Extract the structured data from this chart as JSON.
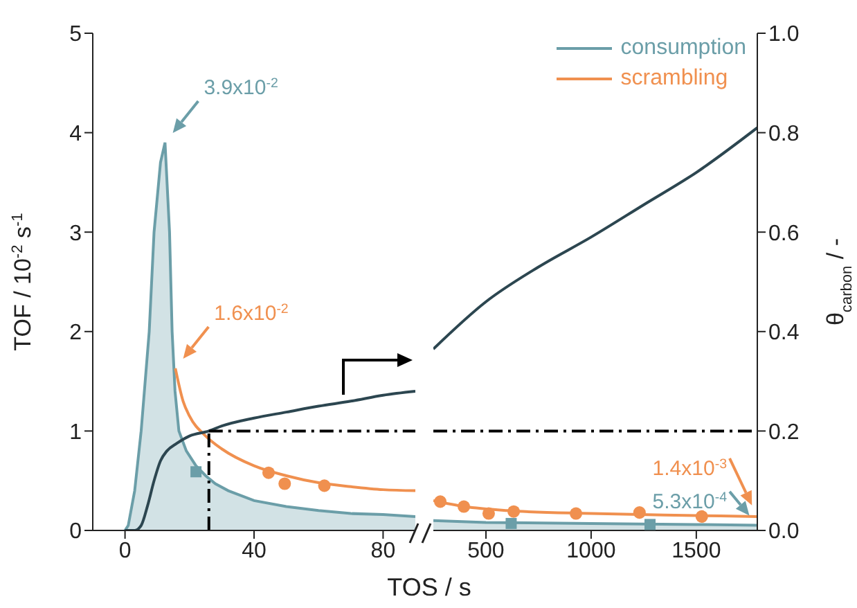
{
  "chart_data": [
    {
      "type": "line",
      "xlabel": "TOS / s",
      "ylabel": "TOF / 10$^{-2}$ s$^{-1}$",
      "xlim": [
        -10,
        90
      ],
      "xticks": [
        0,
        40,
        80
      ],
      "ylim": [
        0,
        5
      ],
      "yticks": [
        0,
        1,
        2,
        3,
        4,
        5
      ],
      "y2lim": [
        0,
        1
      ],
      "series": [
        {
          "type": "area",
          "color": "#6b9ea8",
          "x": [
            0,
            1,
            3,
            5,
            7.5,
            9,
            11,
            12.4,
            13.8,
            14.6,
            15.5,
            16.7,
            19,
            22,
            25,
            28,
            32,
            40,
            50,
            60,
            70,
            80,
            90
          ],
          "values": [
            0,
            0.05,
            0.4,
            1.0,
            2,
            3,
            3.7,
            3.9,
            3,
            2,
            1.4,
            1,
            0.8,
            0.65,
            0.55,
            0.47,
            0.4,
            0.3,
            0.24,
            0.2,
            0.17,
            0.16,
            0.14
          ]
        },
        {
          "type": "scatter",
          "marker": "square",
          "color": "#6b9ea8",
          "x": [
            22
          ],
          "values": [
            0.59
          ]
        },
        {
          "color": "#f0904f",
          "x": [
            15.6,
            18,
            20,
            25,
            30,
            40,
            50,
            60,
            70,
            80,
            90
          ],
          "values": [
            1.63,
            1.3,
            1.15,
            0.95,
            0.82,
            0.65,
            0.55,
            0.48,
            0.44,
            0.41,
            0.4
          ]
        },
        {
          "type": "scatter",
          "marker": "circle",
          "color": "#f0904f",
          "x": [
            44.5,
            49.5,
            61.8
          ],
          "values": [
            0.58,
            0.47,
            0.45
          ]
        },
        {
          "axis": "y2",
          "color": "#2c4650",
          "x": [
            0,
            3,
            5,
            7,
            9,
            11,
            13,
            16,
            20,
            26,
            30,
            40,
            50,
            60,
            70,
            80,
            90
          ],
          "values": [
            0,
            0,
            0.01,
            0.05,
            0.1,
            0.14,
            0.16,
            0.175,
            0.19,
            0.2,
            0.21,
            0.226,
            0.238,
            0.25,
            0.26,
            0.272,
            0.28
          ]
        }
      ],
      "ref_lines": [
        {
          "axis": "x",
          "value": 26,
          "line_style": "dashdot",
          "color": "#000000"
        },
        {
          "axis": "y2",
          "value": 0.2,
          "line_style": "dashdot",
          "color": "#000000"
        }
      ],
      "annotations": [
        {
          "text": "3.9x10$^{-2}$",
          "x": 12.4,
          "y": 3.9
        },
        {
          "text": "1.6x10$^{-2}$",
          "x": 15.6,
          "y": 1.63
        }
      ]
    },
    {
      "type": "line",
      "y2label": "θ$_{carbon}$ / -",
      "xlim": [
        250,
        1790
      ],
      "xticks": [
        500,
        1000,
        1500
      ],
      "ylim": [
        0,
        5
      ],
      "y2lim": [
        0,
        1
      ],
      "y2ticks": [
        {
          "value": 0,
          "label": "0.0"
        },
        0.2,
        0.4,
        0.6,
        0.8,
        {
          "value": 1,
          "label": "1.0"
        }
      ],
      "legend": "top right",
      "series": [
        {
          "name": "consumption",
          "type": "area",
          "color": "#6b9ea8",
          "x": [
            250,
            500,
            1000,
            1500,
            1790
          ],
          "values": [
            0.1,
            0.08,
            0.07,
            0.06,
            0.053
          ]
        },
        {
          "type": "scatter",
          "marker": "square",
          "color": "#6b9ea8",
          "x": [
            620,
            1280
          ],
          "values": [
            0.07,
            0.06
          ]
        },
        {
          "name": "scrambling",
          "color": "#f0904f",
          "x": [
            250,
            400,
            600,
            1000,
            1500,
            1790
          ],
          "values": [
            0.3,
            0.24,
            0.2,
            0.17,
            0.15,
            0.14
          ]
        },
        {
          "type": "scatter",
          "marker": "circle",
          "color": "#f0904f",
          "x": [
            283,
            395,
            513,
            632,
            928,
            1230,
            1526
          ],
          "values": [
            0.29,
            0.24,
            0.17,
            0.19,
            0.17,
            0.18,
            0.14
          ]
        },
        {
          "axis": "y2",
          "color": "#2c4650",
          "x": [
            250,
            500,
            750,
            1000,
            1250,
            1500,
            1790
          ],
          "values": [
            0.365,
            0.46,
            0.53,
            0.59,
            0.655,
            0.72,
            0.81
          ]
        }
      ],
      "ref_lines": [
        {
          "axis": "y2",
          "value": 0.2,
          "line_style": "dashdot",
          "color": "#000000"
        }
      ],
      "annotations": [
        {
          "text": "1.4x10$^{-3}$",
          "x": 1790,
          "y": 0.14
        },
        {
          "text": "5.3x10$^{-4}$",
          "x": 1790,
          "y": 0.053
        }
      ]
    }
  ]
}
